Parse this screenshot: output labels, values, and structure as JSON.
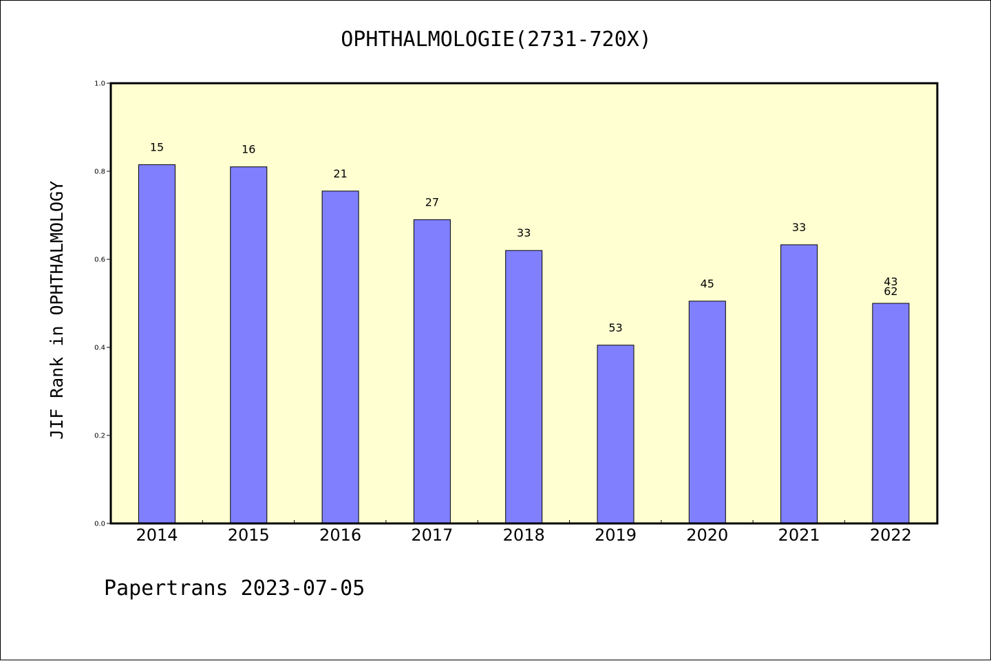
{
  "chart_data": {
    "type": "bar",
    "title": "OPHTHALMOLOGIE(2731-720X)",
    "ylabel": "JIF Rank in OPHTHALMOLOGY",
    "xlabel": "",
    "ylim": [
      0,
      1.0
    ],
    "yticks": [
      "0.0",
      "0.2",
      "0.4",
      "0.6",
      "0.8",
      "1.0"
    ],
    "yticks_values": [
      0,
      0.2,
      0.4,
      0.6,
      0.8,
      1.0
    ],
    "categories": [
      "2014",
      "2015",
      "2016",
      "2017",
      "2018",
      "2019",
      "2020",
      "2021",
      "2022"
    ],
    "values": [
      0.815,
      0.81,
      0.755,
      0.69,
      0.62,
      0.405,
      0.505,
      0.633,
      0.5
    ],
    "data_labels": [
      "15",
      "16",
      "21",
      "27",
      "33",
      "53",
      "45",
      "33",
      "43\n62"
    ],
    "grid": false,
    "legend": "none"
  },
  "footer": "Papertrans 2023-07-05",
  "colors": {
    "plot_background": "#FFFFD2",
    "bar_fill": "#8080FF",
    "bar_stroke": "#000000",
    "axis": "#000000"
  }
}
